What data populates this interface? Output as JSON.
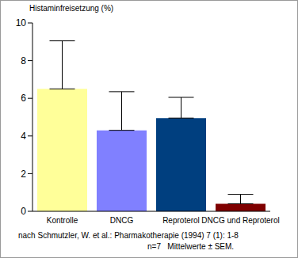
{
  "chart_data": {
    "type": "bar",
    "y_label": "Histaminfreisetzung (%)",
    "categories": [
      "Kontrolle",
      "DNCG",
      "Reproterol",
      "DNCG und Reproterol"
    ],
    "values": [
      6.5,
      4.3,
      4.95,
      0.4
    ],
    "errors": [
      2.55,
      2.05,
      1.1,
      0.5
    ],
    "colors": [
      "#ffff99",
      "#8080ff",
      "#003f7f",
      "#7f0000"
    ],
    "ylim": [
      0,
      10
    ],
    "yticks": [
      0,
      2,
      4,
      6,
      8,
      10
    ],
    "grid": false,
    "source": "nach Schmutzler, W. et al.: Pharmakotherapie (1994) 7 (1): 1-8",
    "note": "n=7   Mittelwerte ± SEM."
  }
}
